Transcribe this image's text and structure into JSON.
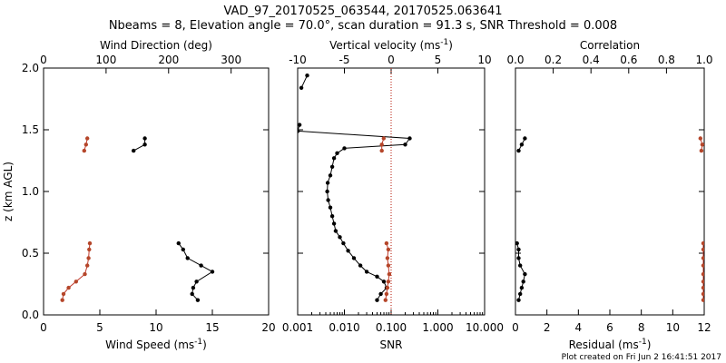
{
  "colors": {
    "black": "#000000",
    "red": "#c0392b",
    "red_marker": "#b5462a"
  },
  "header": {
    "title": "VAD_97_20170525_063544, 20170525.063641",
    "subtitle": "Nbeams = 8, Elevation angle = 70.0°, scan duration = 91.3 s, SNR Threshold = 0.008"
  },
  "footer": {
    "created": "Plot created on Fri Jun  2 16:41:51 2017"
  },
  "chart_data": [
    {
      "type": "line",
      "name": "wind",
      "ylabel": "z (km AGL)",
      "ylim": [
        0,
        2.0
      ],
      "yticks": [
        "0.0",
        "0.5",
        "1.0",
        "1.5",
        "2.0"
      ],
      "bottom_axis": {
        "label": "Wind Speed (ms⁻¹)",
        "range": [
          0,
          20
        ],
        "ticks": [
          "0",
          "5",
          "10",
          "15",
          "20"
        ]
      },
      "top_axis": {
        "label": "Wind Direction (deg)",
        "range": [
          0,
          360
        ],
        "ticks": [
          "0",
          "100",
          "200",
          "300"
        ]
      },
      "series": [
        {
          "name": "Wind Speed",
          "color": "black",
          "axis": "bottom",
          "segments": [
            [
              [
                8.0,
                1.33
              ],
              [
                9.0,
                1.38
              ],
              [
                9.0,
                1.43
              ]
            ],
            [
              [
                13.7,
                0.12
              ],
              [
                13.2,
                0.17
              ],
              [
                13.3,
                0.22
              ],
              [
                13.6,
                0.27
              ],
              [
                15.0,
                0.35
              ],
              [
                14.0,
                0.4
              ],
              [
                12.8,
                0.46
              ],
              [
                12.4,
                0.53
              ],
              [
                12.0,
                0.58
              ]
            ]
          ]
        },
        {
          "name": "Wind Direction",
          "color": "red",
          "axis": "top",
          "segments": [
            [
              [
                65,
                1.33
              ],
              [
                68,
                1.38
              ],
              [
                70,
                1.43
              ]
            ],
            [
              [
                30,
                0.12
              ],
              [
                32,
                0.17
              ],
              [
                40,
                0.22
              ],
              [
                52,
                0.27
              ],
              [
                66,
                0.33
              ],
              [
                70,
                0.4
              ],
              [
                72,
                0.46
              ],
              [
                73,
                0.53
              ],
              [
                74,
                0.58
              ]
            ]
          ]
        }
      ]
    },
    {
      "type": "line",
      "name": "vertical-velocity-snr",
      "ylim": [
        0,
        2.0
      ],
      "bottom_axis": {
        "label": "SNR",
        "scale": "log",
        "range": [
          0.001,
          10.0
        ],
        "ticks": [
          "0.001",
          "0.010",
          "0.100",
          "1.000",
          "10.000"
        ]
      },
      "top_axis": {
        "label": "Vertical velocity (ms⁻¹)",
        "range": [
          -10,
          10
        ],
        "ticks": [
          "-10",
          "-5",
          "0",
          "5",
          "10"
        ]
      },
      "reference_line": {
        "axis": "top",
        "value": 0,
        "style": "dotted",
        "color": "red"
      },
      "series": [
        {
          "name": "SNR",
          "color": "black",
          "axis": "bottom",
          "segments": [
            [
              [
                0.05,
                0.12
              ],
              [
                0.06,
                0.17
              ],
              [
                0.08,
                0.22
              ],
              [
                0.07,
                0.27
              ],
              [
                0.05,
                0.31
              ],
              [
                0.03,
                0.35
              ],
              [
                0.022,
                0.4
              ],
              [
                0.016,
                0.46
              ],
              [
                0.012,
                0.52
              ],
              [
                0.0095,
                0.58
              ],
              [
                0.008,
                0.63
              ],
              [
                0.0065,
                0.68
              ],
              [
                0.006,
                0.74
              ],
              [
                0.0055,
                0.8
              ],
              [
                0.005,
                0.87
              ],
              [
                0.0045,
                0.93
              ],
              [
                0.0043,
                1.0
              ],
              [
                0.0044,
                1.07
              ],
              [
                0.005,
                1.13
              ],
              [
                0.0055,
                1.2
              ],
              [
                0.006,
                1.27
              ],
              [
                0.007,
                1.31
              ],
              [
                0.01,
                1.35
              ],
              [
                0.2,
                1.38
              ],
              [
                0.25,
                1.43
              ],
              [
                0.001,
                1.49
              ],
              [
                0.0011,
                1.54
              ]
            ],
            [
              [
                0.0012,
                1.84
              ],
              [
                0.0016,
                1.94
              ]
            ]
          ]
        },
        {
          "name": "Vertical velocity",
          "color": "red",
          "axis": "top",
          "segments": [
            [
              [
                -1.0,
                1.33
              ],
              [
                -1.0,
                1.38
              ],
              [
                -0.8,
                1.43
              ]
            ],
            [
              [
                -0.6,
                0.12
              ],
              [
                -0.5,
                0.17
              ],
              [
                -0.4,
                0.22
              ],
              [
                -0.3,
                0.27
              ],
              [
                -0.2,
                0.33
              ],
              [
                -0.3,
                0.4
              ],
              [
                -0.4,
                0.46
              ],
              [
                -0.3,
                0.53
              ],
              [
                -0.5,
                0.58
              ]
            ]
          ]
        }
      ]
    },
    {
      "type": "line",
      "name": "residual-correlation",
      "ylim": [
        0,
        2.0
      ],
      "bottom_axis": {
        "label": "Residual (ms⁻¹)",
        "range": [
          0,
          12
        ],
        "ticks": [
          "0",
          "2",
          "4",
          "6",
          "8",
          "10",
          "12"
        ]
      },
      "top_axis": {
        "label": "Correlation",
        "range": [
          0,
          1.0
        ],
        "ticks": [
          "0.0",
          "0.2",
          "0.4",
          "0.6",
          "0.8",
          "1.0"
        ]
      },
      "series": [
        {
          "name": "Residual",
          "color": "black",
          "axis": "bottom",
          "segments": [
            [
              [
                0.2,
                1.33
              ],
              [
                0.4,
                1.38
              ],
              [
                0.6,
                1.43
              ]
            ],
            [
              [
                0.2,
                0.12
              ],
              [
                0.3,
                0.17
              ],
              [
                0.4,
                0.22
              ],
              [
                0.5,
                0.27
              ],
              [
                0.6,
                0.33
              ],
              [
                0.3,
                0.4
              ],
              [
                0.2,
                0.46
              ],
              [
                0.2,
                0.53
              ],
              [
                0.1,
                0.58
              ]
            ]
          ]
        },
        {
          "name": "Correlation",
          "color": "red",
          "axis": "top",
          "segments": [
            [
              [
                0.985,
                1.33
              ],
              [
                0.99,
                1.38
              ],
              [
                0.98,
                1.43
              ]
            ],
            [
              [
                0.995,
                0.12
              ],
              [
                0.995,
                0.17
              ],
              [
                0.995,
                0.22
              ],
              [
                0.995,
                0.27
              ],
              [
                0.995,
                0.33
              ],
              [
                0.995,
                0.4
              ],
              [
                0.995,
                0.46
              ],
              [
                0.995,
                0.53
              ],
              [
                0.995,
                0.58
              ]
            ]
          ]
        }
      ]
    }
  ]
}
